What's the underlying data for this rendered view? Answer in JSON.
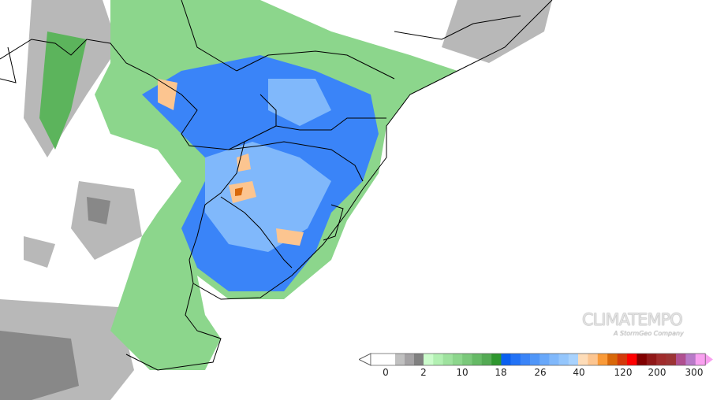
{
  "logo": {
    "name": "CLIMATEMPO",
    "tagline": "A StormGeo Company"
  },
  "colorbar": {
    "tick_labels": [
      "0",
      "2",
      "10",
      "18",
      "26",
      "40",
      "120",
      "200",
      "300"
    ],
    "colors": [
      "#ffffff",
      "#c0c0c0",
      "#a4a2a4",
      "#808080",
      "#ccfccc",
      "#b2f0b2",
      "#9ee29e",
      "#8cd68c",
      "#7ac87a",
      "#66ba66",
      "#54aa54",
      "#2e962e",
      "#0a60f0",
      "#2272f6",
      "#3a84f8",
      "#5096f8",
      "#68a8fa",
      "#80b8fb",
      "#94c6fc",
      "#a8d2fd",
      "#fddcb8",
      "#fcc590",
      "#f99a38",
      "#d8680a",
      "#d43a0a",
      "#ff0000",
      "#800000",
      "#901818",
      "#a02c2c",
      "#9c3434",
      "#b05090",
      "#b87ac8",
      "#f9a0f0"
    ]
  },
  "map_colors": {
    "light_gray": "#c0c0c0",
    "gray": "#8c8c8c",
    "green": "#78c878",
    "dark_green": "#4aa84a",
    "blue": "#3a84f8",
    "light_blue": "#94c6fc",
    "orange": "#fcc590",
    "border": "#000000"
  }
}
